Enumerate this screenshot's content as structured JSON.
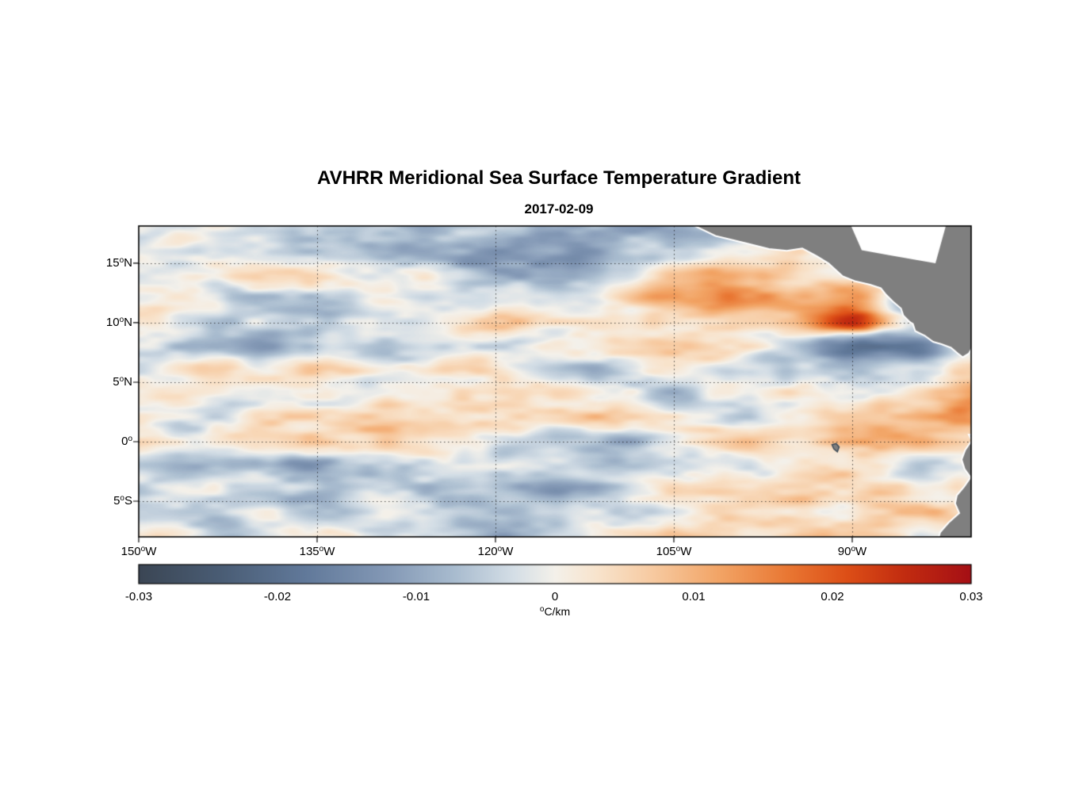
{
  "title": "AVHRR Meridional Sea Surface Temperature Gradient",
  "subtitle": "2017-02-09",
  "chart_data": {
    "type": "heatmap",
    "title": "AVHRR Meridional Sea Surface Temperature Gradient",
    "date": "2017-02-09",
    "units": "°C/km",
    "lon_range": [
      -150,
      -80
    ],
    "lat_range": [
      -8.0,
      18.13
    ],
    "x_axis": {
      "ticks": [
        {
          "value": -150,
          "label": "150°W"
        },
        {
          "value": -135,
          "label": "135°W"
        },
        {
          "value": -120,
          "label": "120°W"
        },
        {
          "value": -105,
          "label": "105°W"
        },
        {
          "value": -90,
          "label": "90°W"
        }
      ]
    },
    "y_axis": {
      "ticks": [
        {
          "value": 15,
          "label": "15°N"
        },
        {
          "value": 10,
          "label": "10°N"
        },
        {
          "value": 5,
          "label": "5°N"
        },
        {
          "value": 0,
          "label": "0°"
        },
        {
          "value": -5,
          "label": "5°S"
        }
      ]
    },
    "gridlines": {
      "lats": [
        15,
        10,
        5,
        0,
        -5
      ],
      "lons": [
        -135,
        -120,
        -105,
        -90
      ],
      "style": "dotted"
    },
    "colorbar": {
      "label": "°C/km",
      "range": [
        -0.03,
        0.03
      ],
      "ticks": [
        {
          "value": -0.03,
          "label": "-0.03"
        },
        {
          "value": -0.02,
          "label": "-0.02"
        },
        {
          "value": -0.01,
          "label": "-0.01"
        },
        {
          "value": 0,
          "label": "0"
        },
        {
          "value": 0.01,
          "label": "0.01"
        },
        {
          "value": 0.02,
          "label": "0.02"
        },
        {
          "value": 0.03,
          "label": "0.03"
        }
      ],
      "stops": [
        {
          "t": 0.0,
          "color": "#3b4654"
        },
        {
          "t": 0.1,
          "color": "#4a5d75"
        },
        {
          "t": 0.2,
          "color": "#61799a"
        },
        {
          "t": 0.3,
          "color": "#8499b6"
        },
        {
          "t": 0.38,
          "color": "#a9bccf"
        },
        {
          "t": 0.45,
          "color": "#d4dee6"
        },
        {
          "t": 0.5,
          "color": "#f4f1ea"
        },
        {
          "t": 0.55,
          "color": "#f8e4cd"
        },
        {
          "t": 0.62,
          "color": "#f7c99f"
        },
        {
          "t": 0.7,
          "color": "#f2a364"
        },
        {
          "t": 0.78,
          "color": "#e97733"
        },
        {
          "t": 0.85,
          "color": "#dd4f17"
        },
        {
          "t": 0.92,
          "color": "#c22c10"
        },
        {
          "t": 1.0,
          "color": "#a50f15"
        }
      ]
    },
    "field": {
      "comment_units": "approximate gradient values read from image, in value_scale * °C/km",
      "value_scale": 0.001,
      "lons": [
        -150,
        -145,
        -140,
        -135,
        -130,
        -125,
        -120,
        -115,
        -110,
        -105,
        -100,
        -95,
        -90,
        -85,
        -80
      ],
      "lats": [
        18,
        16,
        14,
        12,
        10,
        8,
        6,
        4,
        2,
        0,
        -2,
        -4,
        -6,
        -8
      ],
      "values": [
        [
          -2,
          0,
          -4,
          -2,
          -6,
          -8,
          -12,
          -10,
          -8,
          -6,
          -4,
          -2,
          -8,
          -2,
          0
        ],
        [
          0,
          2,
          -2,
          -4,
          -2,
          -6,
          -14,
          -8,
          -4,
          -2,
          2,
          4,
          -10,
          -2,
          0
        ],
        [
          -4,
          -2,
          2,
          0,
          -4,
          -2,
          -6,
          -4,
          0,
          6,
          10,
          8,
          6,
          4,
          0
        ],
        [
          2,
          4,
          0,
          -2,
          2,
          0,
          -2,
          2,
          4,
          8,
          14,
          12,
          18,
          -6,
          0
        ],
        [
          -2,
          -6,
          -4,
          -8,
          -2,
          0,
          2,
          0,
          2,
          6,
          8,
          6,
          22,
          -4,
          2
        ],
        [
          -8,
          -10,
          -12,
          -4,
          -6,
          -2,
          0,
          -2,
          0,
          2,
          4,
          -2,
          -16,
          -12,
          4
        ],
        [
          4,
          2,
          -2,
          0,
          2,
          4,
          2,
          0,
          -2,
          2,
          0,
          -6,
          -10,
          2,
          8
        ],
        [
          6,
          4,
          2,
          4,
          2,
          6,
          4,
          2,
          0,
          -2,
          2,
          4,
          2,
          6,
          14
        ],
        [
          2,
          0,
          4,
          2,
          6,
          4,
          2,
          0,
          2,
          0,
          -2,
          2,
          4,
          2,
          10
        ],
        [
          4,
          2,
          6,
          10,
          4,
          2,
          0,
          -2,
          -4,
          2,
          4,
          2,
          6,
          4,
          2
        ],
        [
          -2,
          -6,
          -4,
          -8,
          -6,
          -4,
          -8,
          -6,
          -8,
          -4,
          -2,
          0,
          2,
          -2,
          0
        ],
        [
          -6,
          -4,
          -8,
          -10,
          -4,
          -6,
          -4,
          -8,
          -6,
          -2,
          2,
          4,
          2,
          0,
          -4
        ],
        [
          -2,
          -4,
          -2,
          -6,
          -2,
          -4,
          -2,
          -4,
          -2,
          2,
          6,
          8,
          6,
          4,
          2
        ],
        [
          0,
          -2,
          -4,
          -2,
          -4,
          -2,
          -4,
          -2,
          0,
          2,
          4,
          2,
          4,
          2,
          0
        ]
      ]
    },
    "land": {
      "color": "#7f7f7f",
      "coast_color": "#ffffff",
      "polygons": [
        {
          "name": "central-america",
          "points": [
            [
              -104.2,
              18.6
            ],
            [
              -101.5,
              17.3
            ],
            [
              -99,
              16.7
            ],
            [
              -97,
              16.2
            ],
            [
              -95.5,
              16.05
            ],
            [
              -94.2,
              16.25
            ],
            [
              -93,
              15.6
            ],
            [
              -92,
              15.0
            ],
            [
              -90.8,
              13.9
            ],
            [
              -89.8,
              13.5
            ],
            [
              -88.5,
              13.2
            ],
            [
              -87.6,
              12.9
            ],
            [
              -87.2,
              12.4
            ],
            [
              -86.6,
              11.8
            ],
            [
              -85.9,
              11.2
            ],
            [
              -85.7,
              10.6
            ],
            [
              -85.2,
              10.1
            ],
            [
              -84.9,
              9.9
            ],
            [
              -84.7,
              9.3
            ],
            [
              -83.9,
              8.9
            ],
            [
              -83.2,
              8.4
            ],
            [
              -82.5,
              8.2
            ],
            [
              -81.7,
              7.9
            ],
            [
              -81.1,
              7.4
            ],
            [
              -80.7,
              7.1
            ],
            [
              -80.2,
              7.4
            ],
            [
              -79.8,
              8.1
            ],
            [
              -79.3,
              8.7
            ],
            [
              -77,
              9.2
            ],
            [
              -76,
              18.6
            ]
          ]
        },
        {
          "name": "south-america",
          "points": [
            [
              -80.2,
              0.6
            ],
            [
              -79.95,
              0.1
            ],
            [
              -80.5,
              -0.7
            ],
            [
              -80.8,
              -1.5
            ],
            [
              -80.55,
              -2.3
            ],
            [
              -80.05,
              -3.0
            ],
            [
              -80.6,
              -3.8
            ],
            [
              -81.2,
              -4.5
            ],
            [
              -81.35,
              -5.2
            ],
            [
              -81.0,
              -6.0
            ],
            [
              -81.9,
              -6.8
            ],
            [
              -82.6,
              -7.6
            ],
            [
              -82.9,
              -8.6
            ],
            [
              -76,
              -8.6
            ],
            [
              -76,
              0.4
            ]
          ]
        }
      ],
      "gaps": [
        {
          "name": "caribbean-sea",
          "points": [
            [
              -90.3,
              18.6
            ],
            [
              -82.0,
              18.6
            ],
            [
              -83.0,
              15.0
            ],
            [
              -85.0,
              15.35
            ],
            [
              -87.0,
              15.7
            ],
            [
              -89.2,
              16.1
            ]
          ]
        }
      ],
      "islands": [
        {
          "name": "galapagos",
          "points": [
            [
              -91.7,
              -0.25
            ],
            [
              -91.35,
              -0.15
            ],
            [
              -91.1,
              -0.45
            ],
            [
              -91.25,
              -0.85
            ],
            [
              -91.55,
              -0.6
            ]
          ]
        }
      ]
    }
  }
}
